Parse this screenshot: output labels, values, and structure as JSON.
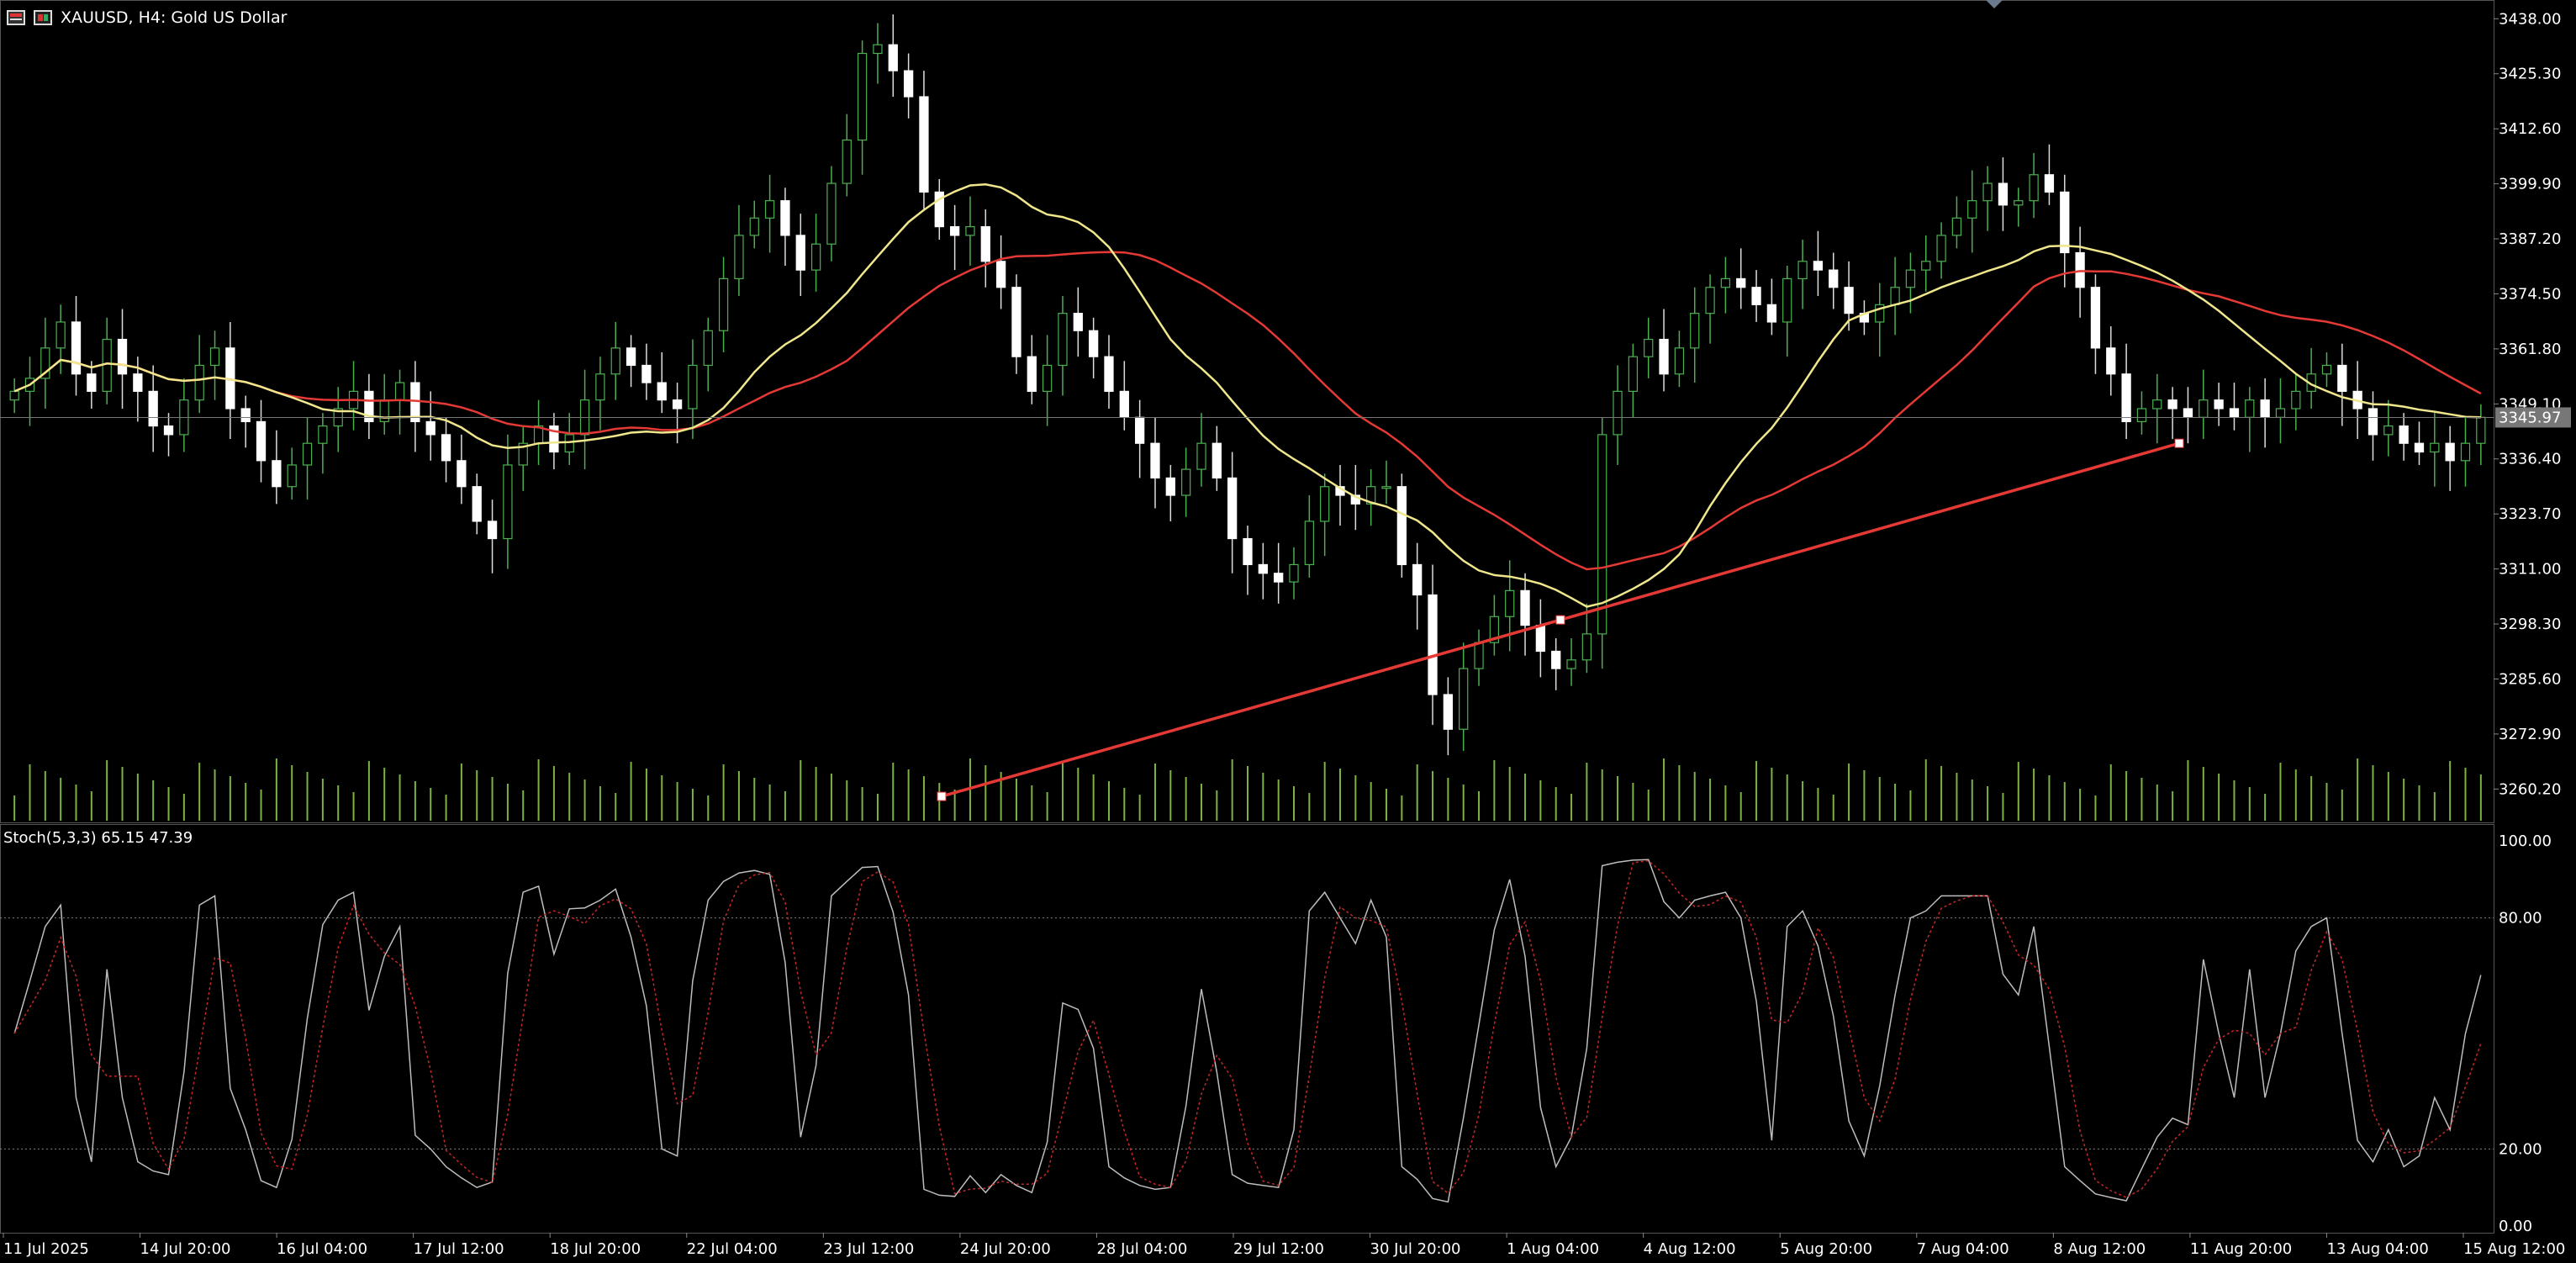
{
  "window": {
    "symbol_label": "XAUUSD, H4:  Gold US Dollar"
  },
  "current_price": "3345.97",
  "price_axis_labels": [
    "3438.00",
    "3425.30",
    "3412.60",
    "3399.90",
    "3387.20",
    "3374.50",
    "3361.80",
    "3349.10",
    "3336.40",
    "3323.70",
    "3311.00",
    "3298.30",
    "3285.60",
    "3272.90",
    "3260.20"
  ],
  "time_axis_labels": [
    "11 Jul 2025",
    "14 Jul 20:00",
    "16 Jul 04:00",
    "17 Jul 12:00",
    "18 Jul 20:00",
    "22 Jul 04:00",
    "23 Jul 12:00",
    "24 Jul 20:00",
    "28 Jul 04:00",
    "29 Jul 12:00",
    "30 Jul 20:00",
    "1 Aug 04:00",
    "4 Aug 12:00",
    "5 Aug 20:00",
    "7 Aug 04:00",
    "8 Aug 12:00",
    "11 Aug 20:00",
    "13 Aug 04:00",
    "15 Aug 12:00"
  ],
  "stoch": {
    "label": "Stoch(5,3,3) 65.15 47.39",
    "axis_labels": [
      "100.00",
      "80.00",
      "20.00",
      "0.00"
    ],
    "levels": [
      80,
      20
    ],
    "main_value": 65.15,
    "signal_value": 47.39
  },
  "colors": {
    "background": "#000000",
    "bull_candle": "#00c853",
    "bear_candle": "#ffffff",
    "ma_slow": "#e53935",
    "ma_fast": "#f0e68c",
    "trendline": "#e53935",
    "volume": "#7cb342",
    "stoch_main": "#bdbdbd",
    "stoch_signal": "#c62828",
    "grid": "#808080"
  },
  "chart_data": {
    "type": "candlestick",
    "title": "XAUUSD, H4:  Gold US Dollar",
    "ylim": [
      3252.5,
      3440.0
    ],
    "close": [
      3352,
      3355,
      3362,
      3368,
      3356,
      3352,
      3364,
      3356,
      3352,
      3344,
      3342,
      3350,
      3358,
      3362,
      3348,
      3345,
      3336,
      3330,
      3335,
      3340,
      3344,
      3348,
      3352,
      3345,
      3350,
      3354,
      3345,
      3342,
      3336,
      3330,
      3322,
      3318,
      3335,
      3340,
      3344,
      3338,
      3342,
      3350,
      3356,
      3362,
      3358,
      3354,
      3350,
      3348,
      3358,
      3366,
      3378,
      3388,
      3392,
      3396,
      3388,
      3380,
      3386,
      3400,
      3410,
      3430,
      3432,
      3426,
      3420,
      3398,
      3390,
      3388,
      3390,
      3382,
      3376,
      3360,
      3352,
      3358,
      3370,
      3366,
      3360,
      3352,
      3346,
      3340,
      3332,
      3328,
      3334,
      3340,
      3332,
      3318,
      3312,
      3310,
      3308,
      3312,
      3322,
      3330,
      3328,
      3326,
      3330,
      3330,
      3312,
      3305,
      3282,
      3274,
      3288,
      3294,
      3300,
      3306,
      3298,
      3292,
      3288,
      3290,
      3296,
      3342,
      3352,
      3360,
      3364,
      3356,
      3362,
      3370,
      3376,
      3378,
      3376,
      3372,
      3368,
      3378,
      3382,
      3380,
      3376,
      3370,
      3368,
      3372,
      3376,
      3380,
      3382,
      3388,
      3392,
      3396,
      3400,
      3395,
      3396,
      3402,
      3398,
      3384,
      3376,
      3362,
      3356,
      3345,
      3348,
      3350,
      3348,
      3346,
      3350,
      3348,
      3346,
      3350,
      3346,
      3348,
      3352,
      3356,
      3358,
      3352,
      3348,
      3342,
      3344,
      3340,
      3338,
      3340,
      3336,
      3340,
      3346
    ],
    "moving_averages": [
      {
        "period": 200,
        "value_last": 3355.5
      },
      {
        "period": 50,
        "value_last": 3344.5
      }
    ],
    "trendline": {
      "start": {
        "time": "28 Jul 04:00",
        "price": 3258.5
      },
      "end_price": 3340.0
    },
    "horizontal_line": {
      "price": 3345.97
    }
  }
}
